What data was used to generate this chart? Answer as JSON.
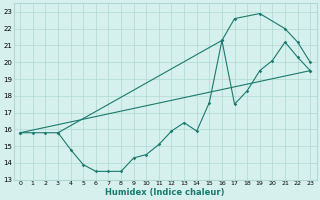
{
  "xlabel": "Humidex (Indice chaleur)",
  "ylabel": "",
  "xlim": [
    -0.5,
    23.5
  ],
  "ylim": [
    13,
    23.5
  ],
  "yticks": [
    13,
    14,
    15,
    16,
    17,
    18,
    19,
    20,
    21,
    22,
    23
  ],
  "xticks": [
    0,
    1,
    2,
    3,
    4,
    5,
    6,
    7,
    8,
    9,
    10,
    11,
    12,
    13,
    14,
    15,
    16,
    17,
    18,
    19,
    20,
    21,
    22,
    23
  ],
  "bg_color": "#d6f0ee",
  "line_color": "#1a7a6e",
  "grid_color": "#b0d8d4",
  "series1_x": [
    0,
    1,
    2,
    3,
    4,
    5,
    6,
    7,
    8,
    9,
    10,
    11,
    12,
    13,
    14,
    15,
    16,
    17,
    18,
    19,
    20,
    21,
    22,
    23
  ],
  "series1_y": [
    15.8,
    15.8,
    15.8,
    15.8,
    14.8,
    13.9,
    13.5,
    13.5,
    13.5,
    14.3,
    14.5,
    15.1,
    15.9,
    16.4,
    15.9,
    17.6,
    21.3,
    17.5,
    18.3,
    19.5,
    20.1,
    21.2,
    20.3,
    19.5
  ],
  "series2_x": [
    0,
    23
  ],
  "series2_y": [
    15.8,
    19.5
  ],
  "series3_x": [
    3,
    16,
    17,
    19,
    21,
    22,
    23
  ],
  "series3_y": [
    15.8,
    21.3,
    22.6,
    22.9,
    22.0,
    21.2,
    20.0
  ]
}
